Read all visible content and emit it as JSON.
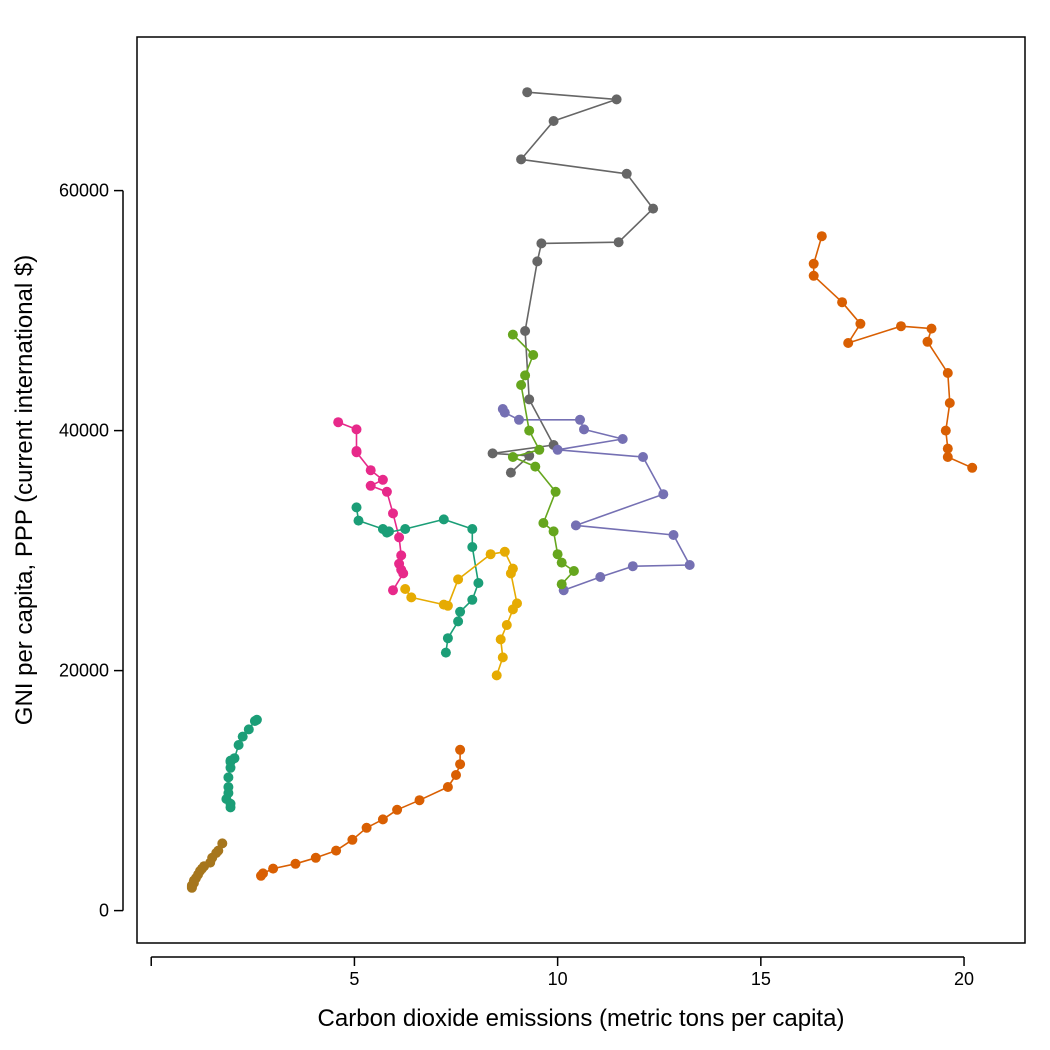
{
  "chart_data": {
    "type": "scatter",
    "title": "",
    "xlabel": "Carbon dioxide emissions (metric tons per capita)",
    "ylabel": "GNI per capita, PPP (current international $)",
    "xlim": [
      -0.35,
      21.5
    ],
    "ylim": [
      -2700,
      72800
    ],
    "x_ticks": [
      {
        "value": 0,
        "label": ""
      },
      {
        "value": 5,
        "label": "5"
      },
      {
        "value": 10,
        "label": "10"
      },
      {
        "value": 15,
        "label": "15"
      },
      {
        "value": 20,
        "label": "20"
      }
    ],
    "y_ticks": [
      {
        "value": 0,
        "label": "0"
      },
      {
        "value": 20000,
        "label": "20000"
      },
      {
        "value": 40000,
        "label": "40000"
      },
      {
        "value": 60000,
        "label": "60000"
      }
    ],
    "grid": false,
    "legend": "none",
    "series": [
      {
        "color": "#666666",
        "points": [
          [
            9.25,
            68200
          ],
          [
            11.45,
            67600
          ],
          [
            9.9,
            65800
          ],
          [
            9.1,
            62600
          ],
          [
            11.7,
            61400
          ],
          [
            12.35,
            58500
          ],
          [
            11.5,
            55700
          ],
          [
            9.6,
            55600
          ],
          [
            9.5,
            54100
          ],
          [
            9.2,
            48300
          ],
          [
            9.3,
            42600
          ],
          [
            9.9,
            38800
          ],
          [
            8.4,
            38100
          ],
          [
            9.3,
            37900
          ],
          [
            8.85,
            36500
          ]
        ]
      },
      {
        "color": "#D95F02",
        "points": [
          [
            16.5,
            56200
          ],
          [
            16.3,
            53900
          ],
          [
            16.3,
            52900
          ],
          [
            17.0,
            50700
          ],
          [
            17.45,
            48900
          ],
          [
            17.15,
            47300
          ],
          [
            18.45,
            48700
          ],
          [
            19.2,
            48500
          ],
          [
            19.1,
            47400
          ],
          [
            19.6,
            44800
          ],
          [
            19.65,
            42300
          ],
          [
            19.55,
            40000
          ],
          [
            19.6,
            38500
          ],
          [
            19.6,
            37800
          ],
          [
            20.2,
            36900
          ]
        ]
      },
      {
        "color": "#7570B3",
        "points": [
          [
            8.65,
            41800
          ],
          [
            8.7,
            41500
          ],
          [
            9.05,
            40900
          ],
          [
            10.55,
            40900
          ],
          [
            10.65,
            40100
          ],
          [
            11.6,
            39300
          ],
          [
            10.0,
            38400
          ],
          [
            12.1,
            37800
          ],
          [
            12.6,
            34700
          ],
          [
            10.45,
            32100
          ],
          [
            12.85,
            31300
          ],
          [
            13.25,
            28800
          ],
          [
            11.85,
            28700
          ],
          [
            11.05,
            27800
          ],
          [
            10.15,
            26700
          ]
        ]
      },
      {
        "color": "#66A61E",
        "points": [
          [
            8.9,
            48000
          ],
          [
            9.4,
            46300
          ],
          [
            9.2,
            44600
          ],
          [
            9.1,
            43800
          ],
          [
            9.3,
            40000
          ],
          [
            9.55,
            38400
          ],
          [
            8.9,
            37800
          ],
          [
            9.45,
            37000
          ],
          [
            9.95,
            34900
          ],
          [
            9.65,
            32300
          ],
          [
            9.9,
            31600
          ],
          [
            10.0,
            29700
          ],
          [
            10.1,
            29000
          ],
          [
            10.4,
            28300
          ],
          [
            10.1,
            27200
          ]
        ]
      },
      {
        "color": "#E7298A",
        "points": [
          [
            4.6,
            40700
          ],
          [
            5.05,
            40100
          ],
          [
            5.05,
            38300
          ],
          [
            5.05,
            38200
          ],
          [
            5.4,
            36700
          ],
          [
            5.7,
            35900
          ],
          [
            5.4,
            35400
          ],
          [
            5.8,
            34900
          ],
          [
            5.95,
            33100
          ],
          [
            6.1,
            31100
          ],
          [
            6.15,
            29600
          ],
          [
            6.1,
            28900
          ],
          [
            6.15,
            28400
          ],
          [
            6.2,
            28100
          ],
          [
            5.95,
            26700
          ]
        ]
      },
      {
        "color": "#1B9E77",
        "points": [
          [
            5.05,
            33600
          ],
          [
            5.1,
            32500
          ],
          [
            5.7,
            31800
          ],
          [
            5.85,
            31600
          ],
          [
            5.8,
            31500
          ],
          [
            6.25,
            31800
          ],
          [
            7.2,
            32600
          ],
          [
            7.9,
            31800
          ],
          [
            7.9,
            30300
          ],
          [
            8.05,
            27300
          ],
          [
            7.9,
            25900
          ],
          [
            7.6,
            24900
          ],
          [
            7.55,
            24100
          ],
          [
            7.3,
            22700
          ],
          [
            7.25,
            21500
          ]
        ]
      },
      {
        "color": "#E6AB02",
        "points": [
          [
            6.25,
            26800
          ],
          [
            6.4,
            26100
          ],
          [
            7.2,
            25500
          ],
          [
            7.3,
            25400
          ],
          [
            7.55,
            27600
          ],
          [
            8.35,
            29700
          ],
          [
            8.7,
            29900
          ],
          [
            8.9,
            28500
          ],
          [
            8.85,
            28100
          ],
          [
            9.0,
            25600
          ],
          [
            8.9,
            25100
          ],
          [
            8.75,
            23800
          ],
          [
            8.6,
            22600
          ],
          [
            8.65,
            21100
          ],
          [
            8.5,
            19600
          ]
        ]
      },
      {
        "color": "#1B9E77",
        "points": [
          [
            2.6,
            15900
          ],
          [
            2.55,
            15800
          ],
          [
            2.4,
            15100
          ],
          [
            2.25,
            14500
          ],
          [
            2.15,
            13800
          ],
          [
            2.05,
            12700
          ],
          [
            1.95,
            12500
          ],
          [
            1.95,
            12400
          ],
          [
            1.95,
            11900
          ],
          [
            1.9,
            11100
          ],
          [
            1.9,
            10300
          ],
          [
            1.9,
            9800
          ],
          [
            1.85,
            9300
          ],
          [
            1.95,
            8900
          ],
          [
            1.95,
            8600
          ]
        ]
      },
      {
        "color": "#D95F02",
        "points": [
          [
            7.6,
            13400
          ],
          [
            7.6,
            12200
          ],
          [
            7.5,
            11300
          ],
          [
            7.3,
            10300
          ],
          [
            6.6,
            9200
          ],
          [
            6.05,
            8400
          ],
          [
            5.7,
            7600
          ],
          [
            5.3,
            6900
          ],
          [
            4.95,
            5900
          ],
          [
            4.55,
            5000
          ],
          [
            4.05,
            4400
          ],
          [
            3.55,
            3900
          ],
          [
            3.0,
            3500
          ],
          [
            2.75,
            3100
          ],
          [
            2.7,
            2900
          ]
        ]
      },
      {
        "color": "#A6761D",
        "points": [
          [
            1.75,
            5600
          ],
          [
            1.65,
            5000
          ],
          [
            1.6,
            4800
          ],
          [
            1.5,
            4400
          ],
          [
            1.45,
            4000
          ],
          [
            1.3,
            3700
          ],
          [
            1.25,
            3500
          ],
          [
            1.2,
            3300
          ],
          [
            1.15,
            3000
          ],
          [
            1.1,
            2700
          ],
          [
            1.05,
            2500
          ],
          [
            1.05,
            2300
          ],
          [
            1.0,
            2100
          ],
          [
            1.0,
            2000
          ],
          [
            1.0,
            1900
          ]
        ]
      }
    ]
  }
}
